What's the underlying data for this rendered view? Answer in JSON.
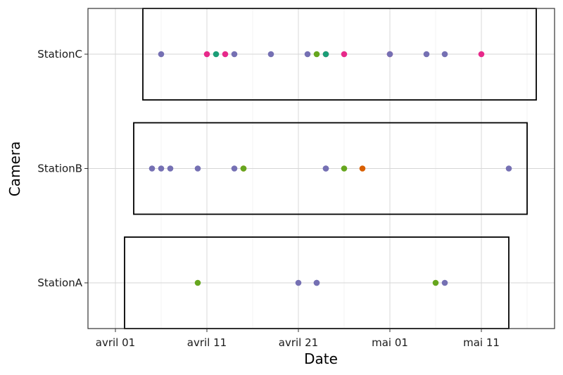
{
  "chart_data": {
    "type": "scatter",
    "xlabel": "Date",
    "ylabel": "Camera",
    "x_axis": {
      "type": "date",
      "range": [
        "2021-03-29",
        "2021-05-19"
      ],
      "ticks": [
        {
          "value": "2021-04-01",
          "label": "avril 01"
        },
        {
          "value": "2021-04-11",
          "label": "avril 11"
        },
        {
          "value": "2021-04-21",
          "label": "avril 21"
        },
        {
          "value": "2021-05-01",
          "label": "mai 01"
        },
        {
          "value": "2021-05-11",
          "label": "mai 11"
        }
      ]
    },
    "categories": [
      "StationA",
      "StationB",
      "StationC"
    ],
    "grid": true,
    "legend": "none",
    "colors": {
      "purple": "#7570b3",
      "pink": "#e7298a",
      "teal": "#1b9e77",
      "green": "#66a61e",
      "orange": "#d95f02"
    },
    "deployments": [
      {
        "camera": "StationA",
        "start": "2021-04-02",
        "end": "2021-05-14"
      },
      {
        "camera": "StationB",
        "start": "2021-04-03",
        "end": "2021-05-16"
      },
      {
        "camera": "StationC",
        "start": "2021-04-04",
        "end": "2021-05-17"
      }
    ],
    "points": [
      {
        "camera": "StationC",
        "date": "2021-04-06",
        "color": "purple"
      },
      {
        "camera": "StationC",
        "date": "2021-04-11",
        "color": "pink"
      },
      {
        "camera": "StationC",
        "date": "2021-04-12",
        "color": "teal"
      },
      {
        "camera": "StationC",
        "date": "2021-04-13",
        "color": "pink"
      },
      {
        "camera": "StationC",
        "date": "2021-04-14",
        "color": "purple"
      },
      {
        "camera": "StationC",
        "date": "2021-04-18",
        "color": "purple"
      },
      {
        "camera": "StationC",
        "date": "2021-04-22",
        "color": "purple"
      },
      {
        "camera": "StationC",
        "date": "2021-04-23",
        "color": "green"
      },
      {
        "camera": "StationC",
        "date": "2021-04-24",
        "color": "pink"
      },
      {
        "camera": "StationC",
        "date": "2021-04-24",
        "color": "teal"
      },
      {
        "camera": "StationC",
        "date": "2021-04-26",
        "color": "pink"
      },
      {
        "camera": "StationC",
        "date": "2021-05-01",
        "color": "pink"
      },
      {
        "camera": "StationC",
        "date": "2021-05-01",
        "color": "purple"
      },
      {
        "camera": "StationC",
        "date": "2021-05-05",
        "color": "purple"
      },
      {
        "camera": "StationC",
        "date": "2021-05-07",
        "color": "purple"
      },
      {
        "camera": "StationC",
        "date": "2021-05-11",
        "color": "pink"
      },
      {
        "camera": "StationB",
        "date": "2021-04-05",
        "color": "purple"
      },
      {
        "camera": "StationB",
        "date": "2021-04-06",
        "color": "purple"
      },
      {
        "camera": "StationB",
        "date": "2021-04-07",
        "color": "purple"
      },
      {
        "camera": "StationB",
        "date": "2021-04-10",
        "color": "purple"
      },
      {
        "camera": "StationB",
        "date": "2021-04-14",
        "color": "purple"
      },
      {
        "camera": "StationB",
        "date": "2021-04-15",
        "color": "orange"
      },
      {
        "camera": "StationB",
        "date": "2021-04-15",
        "color": "green"
      },
      {
        "camera": "StationB",
        "date": "2021-04-24",
        "color": "purple"
      },
      {
        "camera": "StationB",
        "date": "2021-04-24",
        "color": "purple"
      },
      {
        "camera": "StationB",
        "date": "2021-04-26",
        "color": "green"
      },
      {
        "camera": "StationB",
        "date": "2021-04-28",
        "color": "orange"
      },
      {
        "camera": "StationB",
        "date": "2021-05-14",
        "color": "purple"
      },
      {
        "camera": "StationA",
        "date": "2021-04-10",
        "color": "green"
      },
      {
        "camera": "StationA",
        "date": "2021-04-21",
        "color": "purple"
      },
      {
        "camera": "StationA",
        "date": "2021-04-23",
        "color": "purple"
      },
      {
        "camera": "StationA",
        "date": "2021-04-23",
        "color": "purple"
      },
      {
        "camera": "StationA",
        "date": "2021-05-06",
        "color": "green"
      },
      {
        "camera": "StationA",
        "date": "2021-05-07",
        "color": "purple"
      }
    ]
  }
}
